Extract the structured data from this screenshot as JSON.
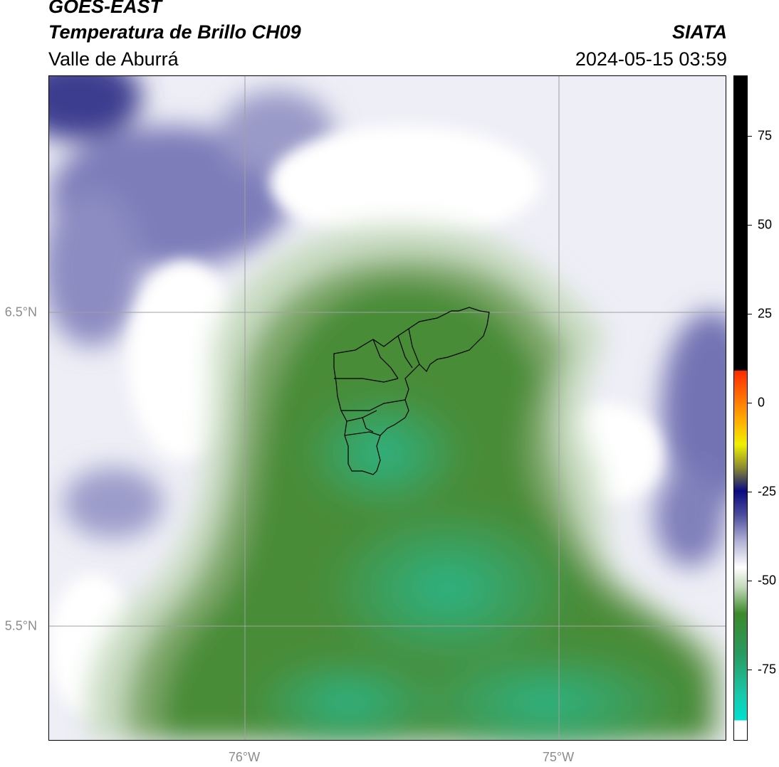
{
  "header": {
    "satellite": "GOES-EAST",
    "product": "Temperatura de Brillo CH09",
    "region": "Valle de Aburrá",
    "agency": "SIATA",
    "timestamp": "2024-05-15 03:59"
  },
  "map": {
    "lon_ticks": [
      "76°W",
      "75°W"
    ],
    "lat_ticks": [
      "6.5°N",
      "5.5°N"
    ],
    "colors": {
      "cold_purple": "#3b3b8f",
      "mid_purple": "#8a8ac0",
      "light_purple": "#d2d2e6",
      "white": "#ffffff",
      "pale_green": "#c9dcc2",
      "mid_green": "#7fa86a",
      "green": "#458a34",
      "teal_green": "#2aa87a",
      "gridline": "#a0a0a0",
      "boundary": "#000000"
    },
    "features": [
      "municipal-boundaries-valle-de-aburra"
    ]
  },
  "colorbar": {
    "tick_labels": [
      "75",
      "50",
      "25",
      "0",
      "-25",
      "-50",
      "-75"
    ],
    "tick_values": [
      75,
      50,
      25,
      0,
      -25,
      -50,
      -75
    ],
    "range": [
      -95,
      92
    ],
    "colors": {
      "top_black": "#000000",
      "red": "#ff2a00",
      "orange": "#ff8c00",
      "yellow": "#f0f000",
      "olive": "#8a8a30",
      "navy": "#0a0a80",
      "purple": "#6060a8",
      "white": "#ffffff",
      "green": "#3a8a2a",
      "teal": "#18c8a8",
      "cyan": "#00e0d0"
    }
  }
}
